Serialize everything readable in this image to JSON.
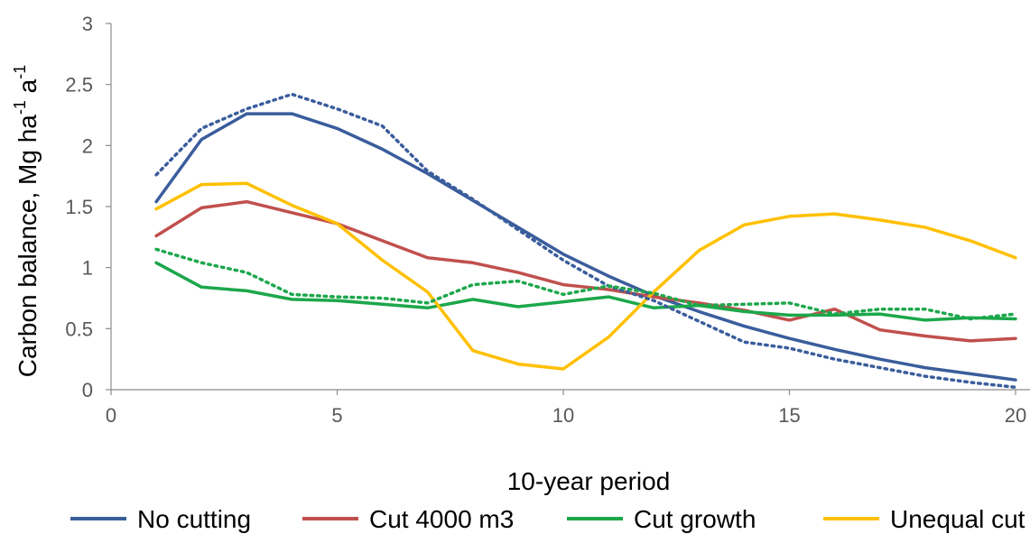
{
  "chart_data": {
    "type": "line",
    "title": "",
    "xlabel": "10-year period",
    "ylabel": {
      "prefix": "Carbon balance, Mg ha",
      "sup1": "-1",
      "mid": " a",
      "sup2": "-1"
    },
    "xlim": [
      0,
      20
    ],
    "ylim": [
      0,
      3
    ],
    "x_ticks": [
      0,
      5,
      10,
      15,
      20
    ],
    "x_tick_labels": [
      "0",
      "5",
      "10",
      "15",
      "20"
    ],
    "y_ticks": [
      0,
      0.5,
      1,
      1.5,
      2,
      2.5,
      3
    ],
    "y_tick_labels": [
      "0",
      "0.5",
      "1",
      "1.5",
      "2",
      "2.5",
      "3"
    ],
    "grid": false,
    "legend_position": "bottom",
    "x": [
      1,
      2,
      3,
      4,
      5,
      6,
      7,
      8,
      9,
      10,
      11,
      12,
      13,
      14,
      15,
      16,
      17,
      18,
      19,
      20
    ],
    "series": [
      {
        "name": "No cutting",
        "color": "#3a5d9c",
        "style": "solid",
        "in_legend": true,
        "values": [
          1.54,
          2.05,
          2.26,
          2.26,
          2.14,
          1.97,
          1.77,
          1.55,
          1.33,
          1.11,
          0.93,
          0.77,
          0.64,
          0.52,
          0.42,
          0.33,
          0.25,
          0.18,
          0.13,
          0.08
        ]
      },
      {
        "name": "Cut 4000 m3",
        "color": "#c0504d",
        "style": "solid",
        "in_legend": true,
        "values": [
          1.26,
          1.49,
          1.54,
          1.45,
          1.36,
          1.22,
          1.08,
          1.04,
          0.96,
          0.86,
          0.82,
          0.76,
          0.71,
          0.65,
          0.57,
          0.66,
          0.49,
          0.44,
          0.4,
          0.42
        ]
      },
      {
        "name": "Cut growth",
        "color": "#1ca74b",
        "style": "solid",
        "in_legend": true,
        "values": [
          1.04,
          0.84,
          0.81,
          0.74,
          0.73,
          0.7,
          0.67,
          0.74,
          0.68,
          0.72,
          0.76,
          0.67,
          0.69,
          0.64,
          0.61,
          0.61,
          0.62,
          0.57,
          0.59,
          0.58
        ]
      },
      {
        "name": "Unequal cut",
        "color": "#ffc000",
        "style": "solid",
        "in_legend": true,
        "values": [
          1.48,
          1.68,
          1.69,
          1.51,
          1.36,
          1.06,
          0.8,
          0.32,
          0.21,
          0.17,
          0.43,
          0.8,
          1.14,
          1.35,
          1.42,
          1.44,
          1.39,
          1.33,
          1.22,
          1.08
        ]
      },
      {
        "name": "",
        "color": "#3a5d9c",
        "style": "dotted",
        "in_legend": false,
        "values": [
          1.76,
          2.14,
          2.3,
          2.42,
          2.3,
          2.16,
          1.79,
          1.56,
          1.31,
          1.06,
          0.85,
          0.73,
          0.56,
          0.39,
          0.34,
          0.25,
          0.18,
          0.11,
          0.06,
          0.02
        ]
      },
      {
        "name": "",
        "color": "#1ca74b",
        "style": "dotted",
        "in_legend": false,
        "values": [
          1.15,
          1.04,
          0.96,
          0.78,
          0.76,
          0.75,
          0.71,
          0.86,
          0.89,
          0.78,
          0.85,
          0.79,
          0.69,
          0.7,
          0.71,
          0.62,
          0.66,
          0.66,
          0.58,
          0.62
        ]
      }
    ]
  }
}
